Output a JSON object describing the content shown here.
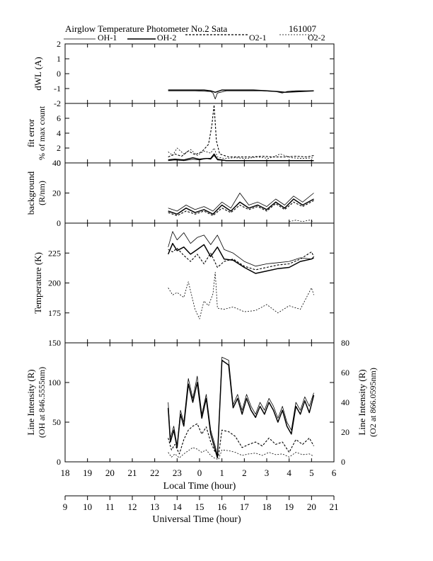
{
  "header": {
    "title": "Airglow Temperature Photometer No.2  Sata",
    "date": "161007"
  },
  "legend": {
    "entries": [
      {
        "label": "OH-1",
        "style": "solid-thin"
      },
      {
        "label": "OH-2",
        "style": "solid-thick"
      },
      {
        "label": "O2-1",
        "style": "dashed"
      },
      {
        "label": "O2-2",
        "style": "dashed-thin"
      }
    ]
  },
  "chart_data": [
    {
      "type": "line",
      "id": "dwl",
      "ylabel": "dWL (A)",
      "ylim": [
        -2,
        2
      ],
      "yticks": [
        -2,
        -1,
        0,
        1,
        2
      ],
      "xlim": [
        18,
        30
      ],
      "series": [
        {
          "name": "OH-1",
          "x": [
            22.6,
            23.2,
            23.8,
            24.5,
            24.6,
            24.7,
            24.8,
            25.2,
            25.8,
            26.3,
            26.8,
            27.4,
            27.7,
            27.9,
            28.3,
            29.1
          ],
          "values": [
            -1.15,
            -1.15,
            -1.15,
            -1.2,
            -1.3,
            -1.7,
            -1.3,
            -1.15,
            -1.15,
            -1.15,
            -1.15,
            -1.2,
            -1.3,
            -1.2,
            -1.15,
            -1.15
          ]
        },
        {
          "name": "OH-2",
          "x": [
            22.6,
            23.4,
            24.2,
            24.5,
            24.7,
            25.0,
            25.6,
            26.4,
            27.5,
            27.8,
            29.1
          ],
          "values": [
            -1.1,
            -1.1,
            -1.1,
            -1.15,
            -1.25,
            -1.1,
            -1.1,
            -1.1,
            -1.2,
            -1.25,
            -1.15
          ]
        }
      ]
    },
    {
      "type": "line",
      "id": "fit-error",
      "ylabel": "fit error",
      "ylabel2": "% of max count",
      "ylim": [
        0,
        8
      ],
      "yticks": [
        0,
        2,
        4,
        6
      ],
      "xlim": [
        18,
        30
      ],
      "series": [
        {
          "name": "OH-1",
          "x": [
            22.6,
            22.9,
            23.3,
            23.7,
            24.0,
            24.3,
            24.5,
            24.65,
            24.8,
            25.2,
            25.8,
            26.5,
            27.2,
            27.9,
            28.6,
            29.1
          ],
          "values": [
            0.3,
            0.4,
            0.3,
            0.5,
            0.4,
            0.6,
            0.5,
            1.0,
            0.4,
            0.3,
            0.3,
            0.3,
            0.3,
            0.3,
            0.3,
            0.3
          ]
        },
        {
          "name": "OH-2",
          "x": [
            22.6,
            22.9,
            23.3,
            23.7,
            24.0,
            24.3,
            24.5,
            24.65,
            24.8,
            25.2,
            25.8,
            26.5,
            27.2,
            27.9,
            28.6,
            29.1
          ],
          "values": [
            0.4,
            0.5,
            0.4,
            0.7,
            0.5,
            0.6,
            0.6,
            1.2,
            0.5,
            0.3,
            0.3,
            0.3,
            0.3,
            0.3,
            0.3,
            0.3
          ]
        },
        {
          "name": "O2-1",
          "x": [
            22.6,
            22.9,
            23.2,
            23.5,
            23.8,
            24.1,
            24.4,
            24.55,
            24.65,
            24.75,
            24.9,
            25.3,
            25.8,
            26.3,
            26.8,
            27.3,
            27.8,
            28.3,
            28.8,
            29.1
          ],
          "values": [
            0.8,
            1.2,
            0.9,
            1.6,
            1.1,
            1.5,
            2.5,
            5.0,
            7.8,
            3.0,
            1.2,
            0.8,
            0.8,
            0.8,
            0.9,
            0.8,
            0.8,
            0.9,
            0.8,
            1.0
          ]
        },
        {
          "name": "O2-2",
          "x": [
            22.6,
            22.8,
            23.0,
            23.3,
            23.6,
            23.9,
            24.2,
            24.5,
            24.65,
            24.8,
            25.1,
            25.6,
            26.1,
            26.6,
            27.1,
            27.6,
            28.1,
            28.6,
            29.1
          ],
          "values": [
            1.5,
            1.0,
            2.0,
            1.2,
            1.8,
            1.0,
            1.6,
            1.3,
            2.0,
            0.8,
            0.6,
            0.7,
            0.6,
            0.8,
            0.6,
            1.2,
            0.7,
            0.6,
            0.7
          ]
        }
      ]
    },
    {
      "type": "line",
      "id": "background",
      "ylabel": "background",
      "ylabel2": "(R/nm)",
      "ylim": [
        0,
        40
      ],
      "yticks": [
        0,
        20,
        40
      ],
      "xlim": [
        18,
        30
      ],
      "series": [
        {
          "name": "OH-1",
          "x": [
            22.6,
            23.0,
            23.4,
            23.8,
            24.2,
            24.6,
            25.0,
            25.4,
            25.8,
            26.2,
            26.6,
            27.0,
            27.4,
            27.8,
            28.2,
            28.6,
            29.1
          ],
          "values": [
            10,
            8,
            12,
            9,
            11,
            8,
            14,
            10,
            20,
            12,
            14,
            11,
            16,
            12,
            18,
            14,
            20
          ]
        },
        {
          "name": "OH-2",
          "x": [
            22.6,
            23.0,
            23.4,
            23.8,
            24.2,
            24.6,
            25.0,
            25.4,
            25.8,
            26.2,
            26.6,
            27.0,
            27.4,
            27.8,
            28.2,
            28.6,
            29.1
          ],
          "values": [
            8,
            6,
            10,
            7,
            9,
            6,
            12,
            8,
            14,
            10,
            12,
            9,
            14,
            10,
            16,
            12,
            16
          ]
        },
        {
          "name": "O2-1",
          "x": [
            22.6,
            23.0,
            23.4,
            23.8,
            24.2,
            24.6,
            25.0,
            25.4,
            25.8,
            26.2,
            26.6,
            27.0,
            27.4,
            27.8,
            28.2,
            28.6,
            29.1
          ],
          "values": [
            7,
            5,
            8,
            6,
            8,
            5,
            10,
            7,
            12,
            9,
            11,
            8,
            13,
            9,
            14,
            11,
            15
          ]
        },
        {
          "name": "O2-2",
          "x": [
            28.0,
            28.3,
            28.6,
            28.9,
            29.1
          ],
          "values": [
            1,
            2,
            1,
            2,
            1
          ]
        }
      ]
    },
    {
      "type": "line",
      "id": "temperature",
      "ylabel": "Temperature (K)",
      "ylim": [
        150,
        250
      ],
      "yticks": [
        175,
        200,
        225
      ],
      "xlim": [
        18,
        30
      ],
      "series": [
        {
          "name": "OH-1",
          "x": [
            22.6,
            22.8,
            23.0,
            23.3,
            23.6,
            23.9,
            24.2,
            24.5,
            24.8,
            25.1,
            25.5,
            26.0,
            26.5,
            27.0,
            27.5,
            28.0,
            28.5,
            29.0,
            29.1
          ],
          "values": [
            230,
            243,
            236,
            242,
            233,
            238,
            240,
            232,
            240,
            228,
            225,
            218,
            214,
            216,
            217,
            218,
            221,
            220,
            222
          ]
        },
        {
          "name": "OH-2",
          "x": [
            22.6,
            22.8,
            23.0,
            23.3,
            23.6,
            23.9,
            24.2,
            24.5,
            24.8,
            25.1,
            25.5,
            26.0,
            26.5,
            27.0,
            27.5,
            28.0,
            28.5,
            29.0,
            29.1
          ],
          "values": [
            224,
            233,
            227,
            230,
            224,
            228,
            232,
            222,
            230,
            220,
            219,
            213,
            208,
            210,
            212,
            213,
            218,
            220,
            221
          ]
        },
        {
          "name": "O2-1",
          "x": [
            22.6,
            22.8,
            23.0,
            23.3,
            23.6,
            23.9,
            24.2,
            24.5,
            24.8,
            25.1,
            25.5,
            26.0,
            26.5,
            27.0,
            27.5,
            28.0,
            28.5,
            29.0,
            29.1
          ],
          "values": [
            228,
            226,
            229,
            223,
            218,
            224,
            216,
            225,
            213,
            218,
            220,
            214,
            211,
            213,
            215,
            216,
            220,
            226,
            222
          ]
        },
        {
          "name": "O2-2",
          "x": [
            22.6,
            22.8,
            23.0,
            23.3,
            23.5,
            23.8,
            24.0,
            24.2,
            24.4,
            24.6,
            24.7,
            24.8,
            25.1,
            25.5,
            26.0,
            26.5,
            27.0,
            27.5,
            28.0,
            28.5,
            29.0,
            29.1
          ],
          "values": [
            196,
            190,
            192,
            188,
            201,
            178,
            170,
            185,
            181,
            191,
            209,
            179,
            178,
            180,
            176,
            177,
            182,
            175,
            181,
            178,
            196,
            190
          ]
        }
      ]
    },
    {
      "type": "line",
      "id": "intensity",
      "ylabel": "Line Intensity (R)",
      "ylabel2": "(OH at 846.5555nm)",
      "y2label": "Line Intensity (R)",
      "y2label2": "(O2 at 866.0595nm)",
      "ylim": [
        0,
        150
      ],
      "yticks": [
        0,
        50,
        100,
        150
      ],
      "y2lim": [
        0,
        80
      ],
      "y2ticks": [
        0,
        20,
        40,
        60,
        80
      ],
      "xlim": [
        18,
        30
      ],
      "xlabel": "Local Time (hour)",
      "xticklabels": [
        "18",
        "19",
        "20",
        "21",
        "22",
        "23",
        "0",
        "1",
        "2",
        "3",
        "4",
        "5",
        "6"
      ],
      "x2label": "Universal Time (hour)",
      "x2ticklabels": [
        "9",
        "10",
        "11",
        "12",
        "13",
        "14",
        "15",
        "16",
        "17",
        "18",
        "19",
        "20",
        "21"
      ],
      "series": [
        {
          "name": "OH-1",
          "x": [
            22.6,
            22.7,
            22.85,
            23.0,
            23.15,
            23.3,
            23.5,
            23.7,
            23.9,
            24.1,
            24.3,
            24.5,
            24.6,
            24.7,
            24.8,
            25.0,
            25.3,
            25.5,
            25.7,
            25.9,
            26.1,
            26.3,
            26.5,
            26.7,
            26.9,
            27.1,
            27.3,
            27.5,
            27.7,
            27.9,
            28.1,
            28.3,
            28.5,
            28.7,
            28.9,
            29.1
          ],
          "values": [
            75,
            30,
            45,
            20,
            65,
            50,
            105,
            80,
            108,
            60,
            85,
            40,
            30,
            20,
            8,
            132,
            128,
            72,
            85,
            65,
            85,
            70,
            60,
            75,
            65,
            80,
            70,
            55,
            70,
            50,
            40,
            75,
            65,
            82,
            70,
            87
          ]
        },
        {
          "name": "OH-2",
          "x": [
            22.6,
            22.7,
            22.85,
            23.0,
            23.15,
            23.3,
            23.5,
            23.7,
            23.9,
            24.1,
            24.3,
            24.5,
            24.6,
            24.7,
            24.8,
            25.0,
            25.3,
            25.5,
            25.7,
            25.9,
            26.1,
            26.3,
            26.5,
            26.7,
            26.9,
            27.1,
            27.3,
            27.5,
            27.7,
            27.9,
            28.1,
            28.3,
            28.5,
            28.7,
            28.9,
            29.1
          ],
          "values": [
            68,
            25,
            40,
            18,
            60,
            45,
            98,
            75,
            100,
            55,
            80,
            35,
            25,
            15,
            5,
            128,
            122,
            68,
            80,
            60,
            80,
            65,
            56,
            70,
            60,
            75,
            65,
            50,
            65,
            45,
            35,
            70,
            60,
            77,
            62,
            84
          ]
        },
        {
          "name": "O2-1",
          "x": [
            22.6,
            22.75,
            22.9,
            23.1,
            23.3,
            23.5,
            23.7,
            23.9,
            24.1,
            24.3,
            24.5,
            24.7,
            24.85,
            25.0,
            25.3,
            25.6,
            25.9,
            26.2,
            26.5,
            26.8,
            27.1,
            27.4,
            27.7,
            28.0,
            28.3,
            28.6,
            28.9,
            29.1
          ],
          "values": [
            30,
            15,
            22,
            10,
            28,
            40,
            45,
            48,
            35,
            44,
            25,
            12,
            8,
            40,
            38,
            32,
            18,
            22,
            25,
            20,
            30,
            22,
            25,
            12,
            28,
            22,
            30,
            20
          ]
        },
        {
          "name": "O2-2",
          "x": [
            22.6,
            22.75,
            22.9,
            23.1,
            23.3,
            23.5,
            23.7,
            23.9,
            24.1,
            24.3,
            24.5,
            24.7,
            24.85,
            25.0,
            25.3,
            25.6,
            25.9,
            26.2,
            26.5,
            26.8,
            27.1,
            27.4,
            27.7,
            28.0,
            28.3,
            28.6,
            28.9,
            29.1
          ],
          "values": [
            12,
            6,
            10,
            5,
            10,
            14,
            18,
            16,
            12,
            15,
            8,
            4,
            3,
            15,
            14,
            12,
            8,
            10,
            11,
            8,
            12,
            9,
            10,
            6,
            12,
            9,
            10,
            7
          ]
        }
      ]
    }
  ]
}
